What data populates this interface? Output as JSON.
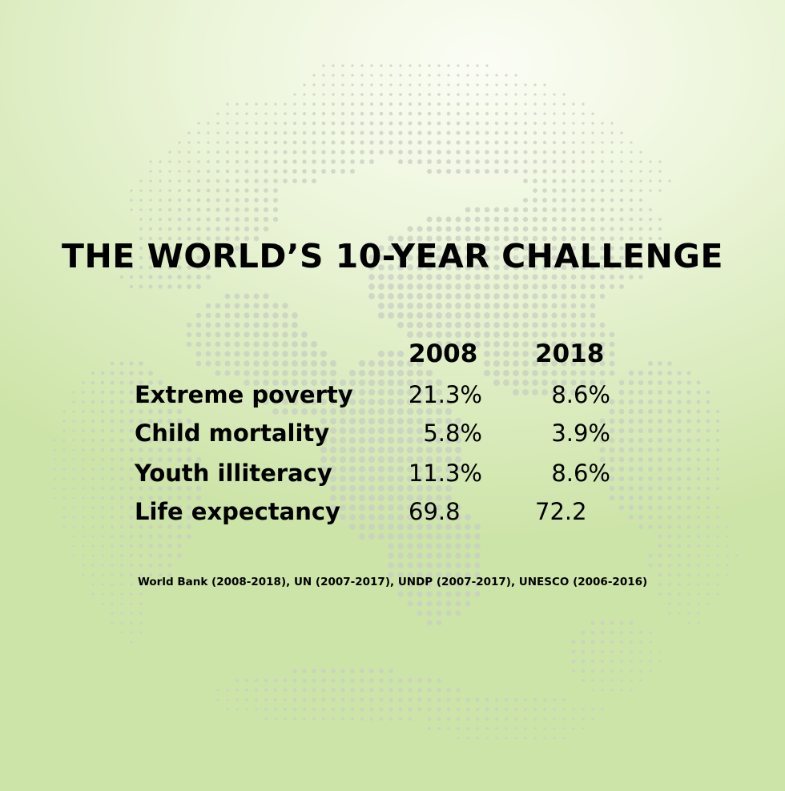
{
  "title": "THE WORLD’S 10-YEAR CHALLENGE",
  "years": [
    "2008",
    "2018"
  ],
  "rows": [
    {
      "label": "Extreme poverty",
      "v2008": "21.3%",
      "v2018": "8.6%"
    },
    {
      "label": "Child mortality",
      "v2008": "5.8%",
      "v2018": "3.9%"
    },
    {
      "label": "Youth illiteracy",
      "v2008": "11.3%",
      "v2018": "8.6%"
    },
    {
      "label": "Life expectancy",
      "v2008": "69.8",
      "v2018": "72.2"
    }
  ],
  "source": "World Bank (2008-2018), UN (2007-2017), UNDP (2007-2017), UNESCO (2006-2016)",
  "colors": {
    "background_light": "#fbfdf5",
    "background_green": "#cde4a8",
    "globe_dots": "#c9cfc2"
  },
  "decoration": "dotted-globe-illustration"
}
